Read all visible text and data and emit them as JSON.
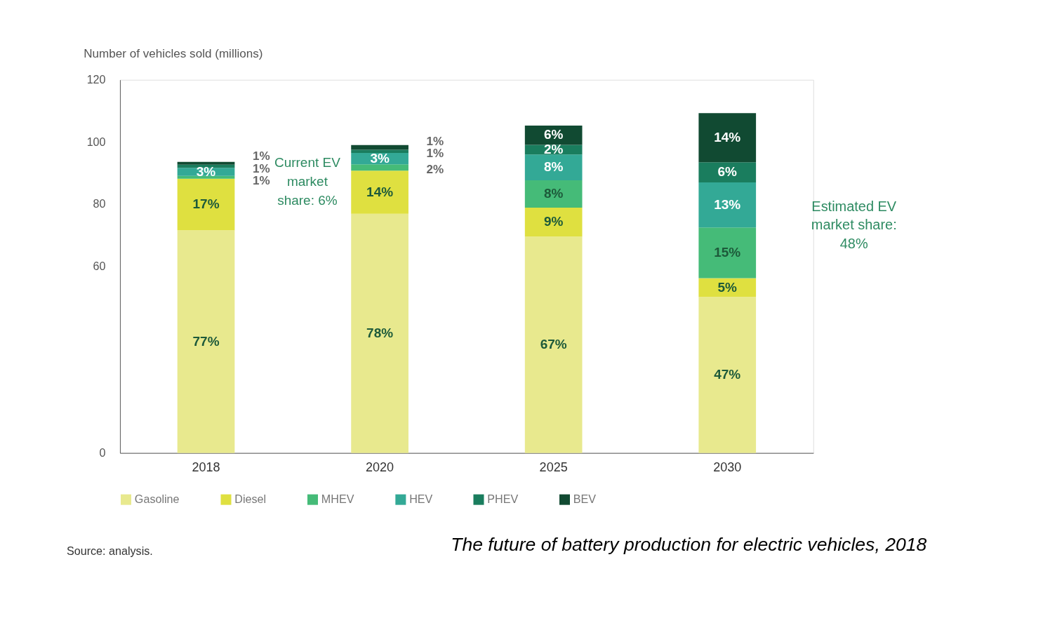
{
  "chart_data": {
    "type": "bar",
    "stacked": true,
    "ylabel": "Number of vehicles sold (millions)",
    "categories": [
      "2018",
      "2020",
      "2025",
      "2030"
    ],
    "ylim": [
      0,
      120
    ],
    "yticks": [
      0,
      60,
      80,
      100,
      120
    ],
    "grid": false,
    "legend": "bottom",
    "series": [
      {
        "name": "Gasoline",
        "color": "#e8e98e",
        "values": [
          71.6,
          76.9,
          69.6,
          50.2
        ]
      },
      {
        "name": "Diesel",
        "color": "#dfe040",
        "values": [
          16.6,
          13.9,
          9.3,
          6.0
        ]
      },
      {
        "name": "MHEV",
        "color": "#45bb78",
        "values": [
          0.9,
          2.0,
          8.8,
          16.3
        ]
      },
      {
        "name": "HEV",
        "color": "#33a996",
        "values": [
          2.6,
          3.7,
          8.3,
          14.5
        ]
      },
      {
        "name": "PHEV",
        "color": "#1a7d5e",
        "values": [
          1.0,
          1.0,
          3.1,
          6.5
        ]
      },
      {
        "name": "BEV",
        "color": "#114a32",
        "values": [
          0.9,
          1.5,
          6.2,
          15.8
        ]
      }
    ],
    "annotations": [
      "77%",
      "17%",
      "1%",
      "3%",
      "1%",
      "1%",
      "78%",
      "14%",
      "2%",
      "3%",
      "1%",
      "1%",
      "67%",
      "9%",
      "8%",
      "8%",
      "2%",
      "6%",
      "47%",
      "5%",
      "15%",
      "13%",
      "6%",
      "14%",
      "Current EV market share: 6%",
      "Estimated EV market share: 48%",
      "Source: analysis.",
      "The future of battery production for electric vehicles, 2018"
    ]
  }
}
